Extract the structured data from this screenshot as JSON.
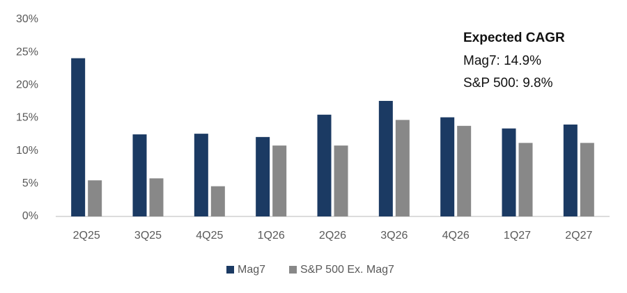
{
  "chart_data": {
    "type": "bar",
    "categories": [
      "2Q25",
      "3Q25",
      "4Q25",
      "1Q26",
      "2Q26",
      "3Q26",
      "4Q26",
      "1Q27",
      "2Q27"
    ],
    "series": [
      {
        "name": "Mag7",
        "color": "#1b3a63",
        "values": [
          24.1,
          12.5,
          12.6,
          12.1,
          15.5,
          17.6,
          15.1,
          13.4,
          14.0
        ]
      },
      {
        "name": "S&P 500 Ex. Mag7",
        "color": "#888888",
        "values": [
          5.5,
          5.8,
          4.6,
          10.8,
          10.8,
          14.7,
          13.8,
          11.2,
          11.2
        ]
      }
    ],
    "ylim": [
      0,
      30
    ],
    "yticks": [
      {
        "value": 0,
        "label": "0%"
      },
      {
        "value": 5,
        "label": "5%"
      },
      {
        "value": 10,
        "label": "10%"
      },
      {
        "value": 15,
        "label": "15%"
      },
      {
        "value": 20,
        "label": "20%"
      },
      {
        "value": 25,
        "label": "25%"
      },
      {
        "value": 30,
        "label": "30%"
      }
    ],
    "grid": false,
    "legend": "bottom",
    "annotations": [
      "Expected CAGR",
      "Mag7: 14.9%",
      "S&P 500: 9.8%"
    ]
  }
}
